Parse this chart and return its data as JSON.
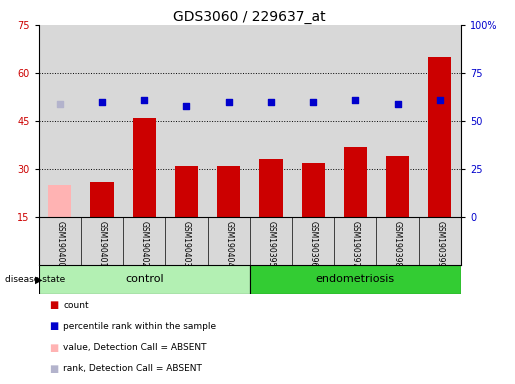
{
  "title": "GDS3060 / 229637_at",
  "samples": [
    "GSM190400",
    "GSM190401",
    "GSM190402",
    "GSM190403",
    "GSM190404",
    "GSM190395",
    "GSM190396",
    "GSM190397",
    "GSM190398",
    "GSM190399"
  ],
  "counts": [
    25,
    26,
    46,
    31,
    31,
    33,
    32,
    37,
    34,
    65
  ],
  "percentile_ranks": [
    59,
    60,
    61,
    58,
    60,
    60,
    60,
    61,
    59,
    61
  ],
  "absent_mask": [
    true,
    false,
    false,
    false,
    false,
    false,
    false,
    false,
    false,
    false
  ],
  "group_colors": {
    "control": "#b3f0b3",
    "endometriosis": "#33cc33"
  },
  "bar_color_present": "#cc0000",
  "bar_color_absent": "#ffb3b3",
  "dot_color_present": "#0000cc",
  "dot_color_absent": "#b3b3cc",
  "ylim_left": [
    15,
    75
  ],
  "ylim_right": [
    0,
    100
  ],
  "yticks_left": [
    15,
    30,
    45,
    60,
    75
  ],
  "yticks_right": [
    0,
    25,
    50,
    75,
    100
  ],
  "ytick_labels_right": [
    "0",
    "25",
    "50",
    "75",
    "100%"
  ],
  "background_color": "#ffffff",
  "plot_bg_color": "#d8d8d8",
  "grid_dotted_at": [
    30,
    45,
    60
  ],
  "title_fontsize": 10,
  "tick_fontsize": 7,
  "label_fontsize": 7,
  "n_control": 5,
  "n_total": 10
}
